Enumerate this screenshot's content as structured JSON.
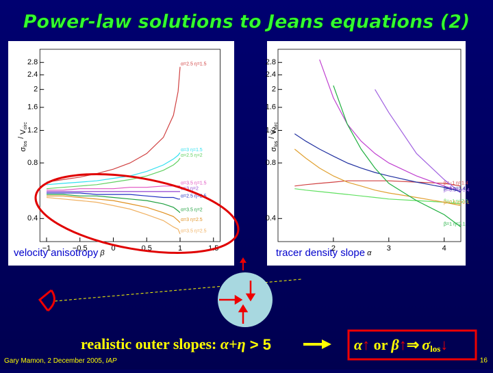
{
  "title": "Power-law solutions to Jeans equations (2)",
  "chart_data": [
    {
      "type": "line",
      "ylog": true,
      "xlabel": "velocity anisotropy",
      "xlabel_symbol": "β",
      "ylabel": {
        "sigma": "σ",
        "sigma_sub": "los",
        "sep": " / ",
        "v": "V",
        "v_sub": "circ"
      },
      "xlim": [
        -1.1,
        1.6
      ],
      "ylim": [
        0.3,
        3.3
      ],
      "xticks": [
        {
          "value": -1,
          "label": "−1"
        },
        {
          "value": -0.5,
          "label": "−0.5"
        },
        0,
        0.5,
        1,
        1.5
      ],
      "yticks": [
        0.4,
        0.8,
        1.2,
        1.6,
        2,
        2.4,
        2.8
      ],
      "x": [
        -1,
        -0.75,
        -0.5,
        -0.25,
        0,
        0.25,
        0.5,
        0.75,
        0.9,
        0.97,
        1
      ],
      "series": [
        {
          "name": "α=2.5 η=1.5",
          "color": "#d04040",
          "values": [
            0.63,
            0.65,
            0.67,
            0.7,
            0.74,
            0.8,
            0.9,
            1.1,
            1.45,
            1.95,
            2.65
          ]
        },
        {
          "name": "α=3 η=1.5",
          "color": "#30e0f0",
          "values": [
            0.61,
            0.62,
            0.63,
            0.64,
            0.66,
            0.68,
            0.72,
            0.78,
            0.84,
            0.88,
            0.91
          ]
        },
        {
          "name": "α=2.5 η=2",
          "color": "#60d060",
          "values": [
            0.58,
            0.59,
            0.6,
            0.61,
            0.63,
            0.65,
            0.68,
            0.73,
            0.78,
            0.82,
            0.85
          ]
        },
        {
          "name": "α=3.5 η=1.5",
          "color": "#e050c0",
          "values": [
            0.57,
            0.57,
            0.58,
            0.58,
            0.58,
            0.59,
            0.59,
            0.6,
            0.6,
            0.6,
            0.6
          ]
        },
        {
          "name": "α=3 η=2",
          "color": "#9040d0",
          "values": [
            0.56,
            0.56,
            0.56,
            0.56,
            0.56,
            0.56,
            0.56,
            0.56,
            0.56,
            0.56,
            0.56
          ]
        },
        {
          "name": "α=2.5 η=2.5",
          "color": "#2030c0",
          "values": [
            0.55,
            0.55,
            0.55,
            0.54,
            0.54,
            0.54,
            0.53,
            0.52,
            0.52,
            0.51,
            0.51
          ]
        },
        {
          "name": "α=3.5 η=2",
          "color": "#20a040",
          "values": [
            0.54,
            0.54,
            0.53,
            0.53,
            0.52,
            0.51,
            0.5,
            0.48,
            0.46,
            0.44,
            0.43
          ]
        },
        {
          "name": "α=3 η=2.5",
          "color": "#e09020",
          "values": [
            0.53,
            0.53,
            0.52,
            0.51,
            0.5,
            0.48,
            0.46,
            0.43,
            0.41,
            0.39,
            0.38
          ]
        },
        {
          "name": "α=3.5 η=2.5",
          "color": "#f0b060",
          "values": [
            0.52,
            0.51,
            0.5,
            0.49,
            0.47,
            0.45,
            0.42,
            0.39,
            0.36,
            0.35,
            0.33
          ]
        }
      ]
    },
    {
      "type": "line",
      "ylog": true,
      "xlabel": "tracer density slope",
      "xlabel_symbol": "α",
      "ylabel": {
        "sigma": "σ",
        "sigma_sub": "los",
        "sep": " / ",
        "v": "V",
        "v_sub": "circ"
      },
      "xlim": [
        1,
        4.3
      ],
      "ylim": [
        0.3,
        3.3
      ],
      "xticks": [
        2,
        3,
        4
      ],
      "yticks": [
        0.4,
        0.8,
        1.2,
        1.6,
        2,
        2.4,
        2.8
      ],
      "x": [
        1.3,
        1.5,
        1.75,
        2,
        2.25,
        2.5,
        2.75,
        3,
        3.5,
        4,
        4.3
      ],
      "series": [
        {
          "name": "β=−1 η=1.4",
          "color": "#d04040",
          "values": [
            0.6,
            0.61,
            0.62,
            0.63,
            0.64,
            0.64,
            0.64,
            0.64,
            0.63,
            0.62,
            0.6
          ]
        },
        {
          "name": "β=0 η=1.4",
          "color": "#c040d0",
          "values": [
            null,
            null,
            2.9,
            1.8,
            1.3,
            1.05,
            0.9,
            0.8,
            0.68,
            0.6,
            0.56
          ]
        },
        {
          "name": "β=0.5 η=1.4",
          "color": "#a060e0",
          "values": [
            null,
            null,
            null,
            null,
            null,
            null,
            2.0,
            1.5,
            0.9,
            0.65,
            0.55
          ]
        },
        {
          "name": "β=−1 η=2.1",
          "color": "#60e060",
          "values": [
            0.58,
            0.57,
            0.56,
            0.55,
            0.54,
            0.53,
            0.52,
            0.51,
            0.5,
            0.49,
            0.48
          ]
        },
        {
          "name": "β=1 η=1.4",
          "color": "#2030a0",
          "values": [
            1.15,
            1.05,
            0.95,
            0.87,
            0.8,
            0.75,
            0.71,
            0.68,
            0.63,
            0.59,
            0.56
          ]
        },
        {
          "name": "β=0.5 η=2.1",
          "color": "#e0a030",
          "values": [
            0.95,
            0.85,
            0.75,
            0.68,
            0.63,
            0.6,
            0.57,
            0.55,
            0.52,
            0.49,
            0.47
          ]
        },
        {
          "name": "β=1 η=2.1",
          "color": "#20b040",
          "values": [
            null,
            null,
            null,
            2.1,
            1.3,
            0.95,
            0.75,
            0.62,
            0.5,
            0.42,
            0.36
          ]
        }
      ]
    }
  ],
  "conclusion": {
    "text": "realistic outer slopes: ",
    "expr": "α+η",
    "rel": " > 5"
  },
  "result": {
    "a": "α",
    "up": "↑",
    "or": " or ",
    "b": "β",
    "up2": "↑",
    "implies": "⇒",
    "sigma": "σ",
    "sub": "los",
    "down": "↓"
  },
  "footer": {
    "author": "Gary Mamon, 2 December 2005, ",
    "venue": "IAP",
    "page": "16"
  }
}
